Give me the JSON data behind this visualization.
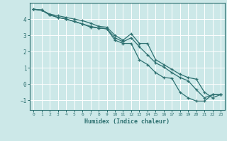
{
  "xlabel": "Humidex (Indice chaleur)",
  "bg_color": "#cce8e8",
  "line_color": "#2d7070",
  "grid_color": "#ffffff",
  "xlim": [
    -0.5,
    23.5
  ],
  "ylim": [
    -1.6,
    5.0
  ],
  "yticks": [
    -1,
    0,
    1,
    2,
    3,
    4
  ],
  "xticks": [
    0,
    1,
    2,
    3,
    4,
    5,
    6,
    7,
    8,
    9,
    10,
    11,
    12,
    13,
    14,
    15,
    16,
    17,
    18,
    19,
    20,
    21,
    22,
    23
  ],
  "x": [
    0,
    1,
    2,
    3,
    4,
    5,
    6,
    7,
    8,
    9,
    10,
    11,
    12,
    13,
    14,
    15,
    16,
    17,
    18,
    19,
    20,
    21,
    22,
    23
  ],
  "y_top": [
    4.6,
    4.55,
    4.3,
    4.2,
    4.1,
    4.0,
    3.9,
    3.75,
    3.55,
    3.5,
    3.0,
    2.7,
    3.1,
    2.5,
    2.5,
    1.5,
    1.2,
    0.9,
    0.6,
    0.4,
    0.3,
    -0.5,
    -0.85,
    -0.65
  ],
  "y_mid": [
    4.6,
    4.55,
    4.25,
    4.1,
    4.0,
    3.85,
    3.7,
    3.55,
    3.45,
    3.4,
    2.85,
    2.6,
    2.85,
    2.3,
    1.8,
    1.3,
    1.05,
    0.7,
    0.4,
    0.2,
    -0.35,
    -0.85,
    -0.65,
    -0.65
  ],
  "y_bot": [
    4.6,
    4.55,
    4.25,
    4.1,
    4.0,
    3.85,
    3.7,
    3.5,
    3.45,
    3.4,
    2.7,
    2.5,
    2.5,
    1.5,
    1.2,
    0.7,
    0.4,
    0.35,
    -0.5,
    -0.85,
    -1.05,
    -1.05,
    -0.65,
    -0.65
  ]
}
